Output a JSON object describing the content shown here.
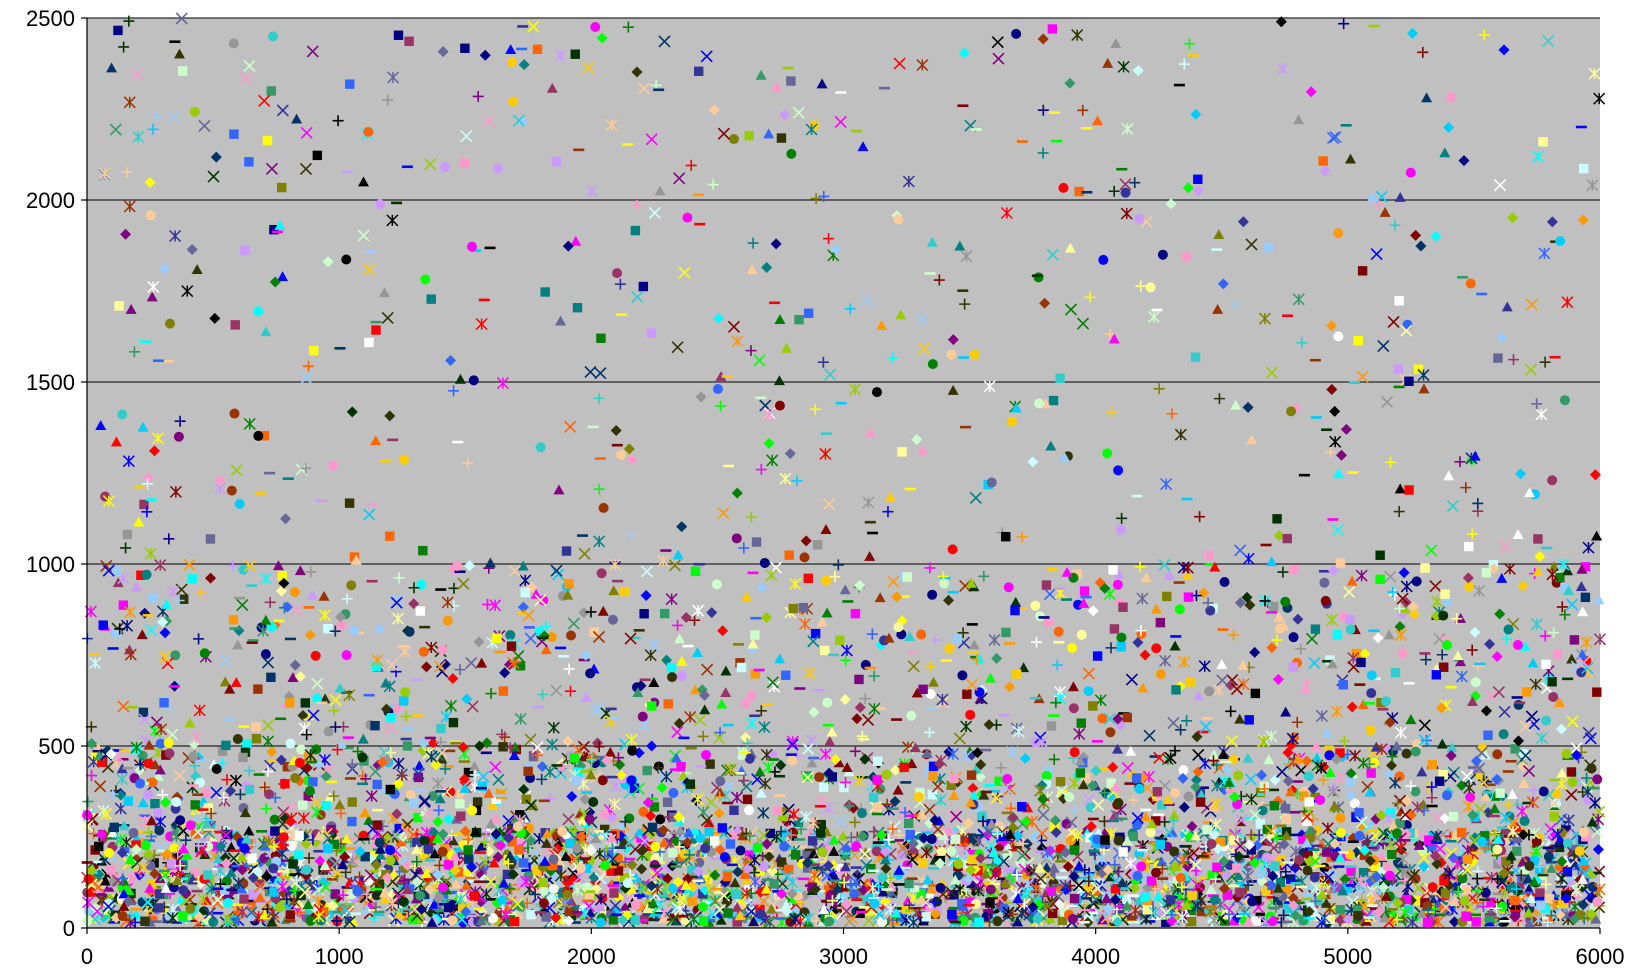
{
  "chart_data": {
    "type": "scatter",
    "title": "",
    "xlabel": "",
    "ylabel": "",
    "xlim": [
      0,
      6000
    ],
    "ylim": [
      0,
      2500
    ],
    "x_ticks": [
      0,
      1000,
      2000,
      3000,
      4000,
      5000,
      6000
    ],
    "y_ticks": [
      0,
      500,
      1000,
      1500,
      2000,
      2500
    ],
    "x_tick_labels": [
      "0",
      "1000",
      "2000",
      "3000",
      "4000",
      "5000",
      "6000"
    ],
    "y_tick_labels": [
      "0",
      "500",
      "1000",
      "1500",
      "2000",
      "2500"
    ],
    "grid": "horizontal major gridlines",
    "legend": "none",
    "plot_background": "#c0c0c0",
    "gridline_color": "#000000",
    "point_count_approx": 6000,
    "distribution_note_bands": [
      {
        "y_range": [
          0,
          250
        ],
        "share": 0.55
      },
      {
        "y_range": [
          250,
          500
        ],
        "share": 0.2
      },
      {
        "y_range": [
          500,
          1000
        ],
        "share": 0.15
      },
      {
        "y_range": [
          1000,
          2500
        ],
        "share": 0.1
      }
    ],
    "marker_shapes": [
      "diamond",
      "square",
      "triangle",
      "x",
      "star",
      "circle",
      "plus",
      "dash"
    ],
    "series_colors": [
      "#000080",
      "#ff00ff",
      "#ffff00",
      "#00ffff",
      "#800080",
      "#800000",
      "#008080",
      "#0000ff",
      "#00ccff",
      "#ccffff",
      "#ccffcc",
      "#ffff99",
      "#99ccff",
      "#ff99cc",
      "#cc99ff",
      "#ffcc99",
      "#3366ff",
      "#33cccc",
      "#99cc00",
      "#ffcc00",
      "#ff9900",
      "#ff6600",
      "#666699",
      "#969696",
      "#003366",
      "#339966",
      "#003300",
      "#333300",
      "#993300",
      "#993366",
      "#333399",
      "#000000",
      "#ffffff",
      "#ff0000",
      "#00ff00",
      "#808000",
      "#008000"
    ]
  }
}
